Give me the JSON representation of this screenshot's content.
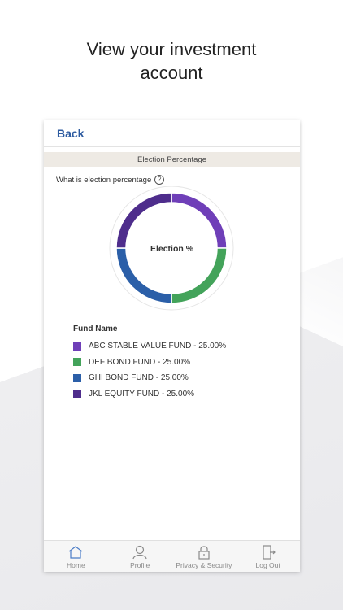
{
  "headline": {
    "line1": "View your investment",
    "line2": "account"
  },
  "nav": {
    "back_label": "Back"
  },
  "section": {
    "title": "Election Percentage"
  },
  "question": {
    "text": "What is election percentage",
    "help_symbol": "?"
  },
  "chart_center_label": "Election %",
  "legend": {
    "title": "Fund Name"
  },
  "chart_data": {
    "type": "pie",
    "categories": [
      "ABC STABLE VALUE FUND",
      "DEF BOND FUND",
      "GHI BOND FUND",
      "JKL EQUITY FUND"
    ],
    "values": [
      25.0,
      25.0,
      25.0,
      25.0
    ],
    "labels": [
      "ABC STABLE VALUE FUND - 25.00%",
      "DEF BOND FUND - 25.00%",
      "GHI BOND FUND - 25.00%",
      "JKL EQUITY FUND - 25.00%"
    ],
    "colors": [
      "#6f3fb8",
      "#43a35a",
      "#2b5fa8",
      "#4e2d8c"
    ],
    "title": "Election %"
  },
  "tabs": [
    {
      "label": "Home",
      "icon": "home-icon",
      "active": true
    },
    {
      "label": "Profile",
      "icon": "profile-icon",
      "active": false
    },
    {
      "label": "Privacy & Security",
      "icon": "lock-icon",
      "active": false
    },
    {
      "label": "Log Out",
      "icon": "logout-icon",
      "active": false
    }
  ],
  "colors": {
    "accent": "#2c5aa0",
    "tab_active": "#4a7cc7",
    "section_bar": "#eeeae4"
  }
}
